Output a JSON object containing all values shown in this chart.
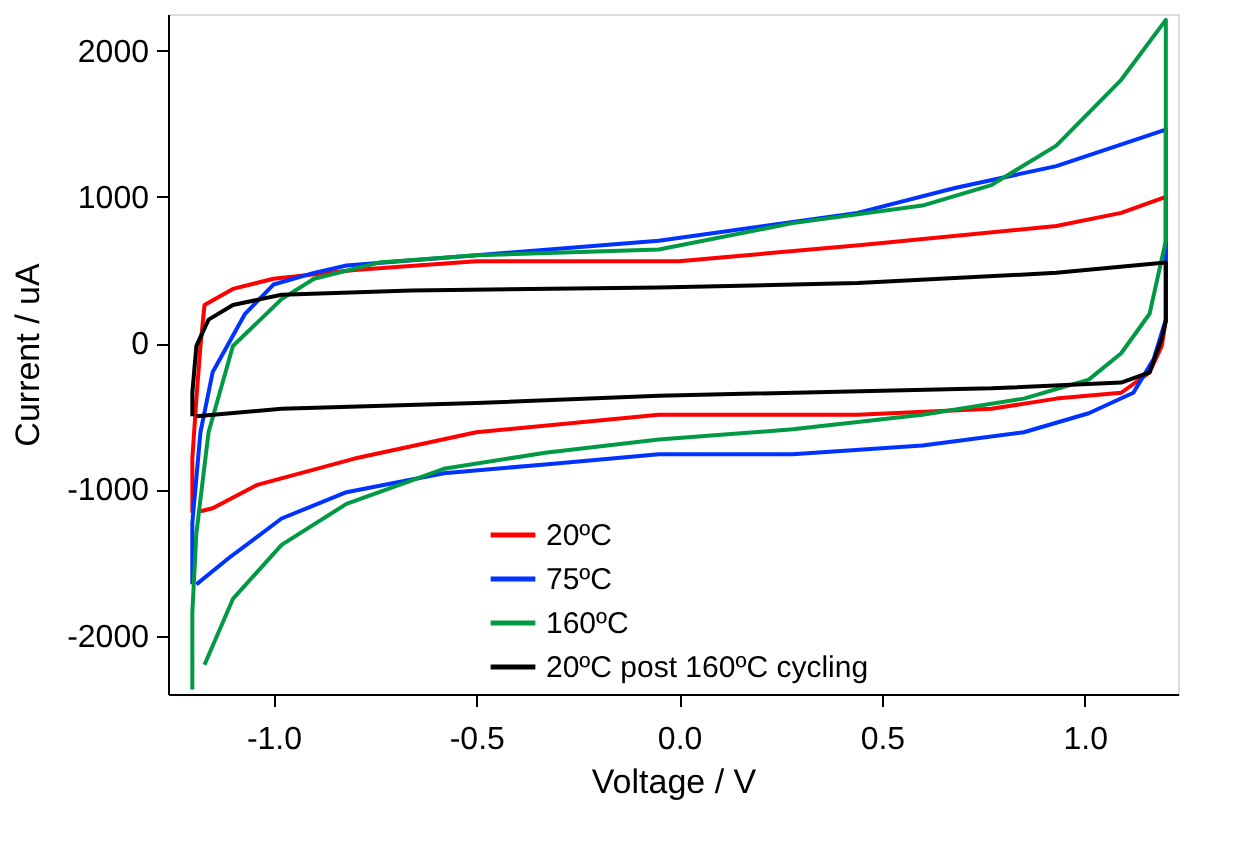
{
  "chart_data": {
    "type": "line",
    "xlabel": "Voltage / V",
    "ylabel": "Current / uA",
    "xlim": [
      -1.26,
      1.23
    ],
    "xticks": [
      {
        "value": -1.0,
        "label": "-1.0"
      },
      {
        "value": -0.5,
        "label": "-0.5"
      },
      {
        "value": 0.0,
        "label": "0.0"
      },
      {
        "value": 0.5,
        "label": "0.5"
      },
      {
        "value": 1.0,
        "label": "1.0"
      }
    ],
    "ylim": [
      -2400,
      2250
    ],
    "yticks": [
      -2000,
      -1000,
      0,
      1000,
      2000
    ],
    "grid": false,
    "legend": "bottom",
    "marker": "none",
    "line_style": "solid",
    "series": [
      {
        "name": "20ºC",
        "color": "#ff0000",
        "x": [
          -1.2,
          -1.2,
          -1.19,
          -1.18,
          -1.17,
          -1.1,
          -1.0,
          -0.8,
          -0.5,
          -0.05,
          0.0,
          0.45,
          0.93,
          1.09,
          1.2,
          1.2,
          1.19,
          1.16,
          1.09,
          0.93,
          0.77,
          0.44,
          -0.05,
          -0.5,
          -0.8,
          -1.04,
          -1.15,
          -1.18
        ],
        "values": [
          -1160,
          -790,
          -380,
          -20,
          260,
          370,
          440,
          500,
          560,
          560,
          560,
          670,
          800,
          890,
          1000,
          160,
          -20,
          -200,
          -340,
          -380,
          -450,
          -490,
          -490,
          -610,
          -790,
          -970,
          -1130,
          -1150
        ]
      },
      {
        "name": "75ºC",
        "color": "#0033ff",
        "x": [
          -1.2,
          -1.2,
          -1.18,
          -1.15,
          -1.07,
          -1.0,
          -0.9,
          -0.82,
          -0.5,
          -0.05,
          0.44,
          0.68,
          0.93,
          1.2,
          1.2,
          1.17,
          1.12,
          1.01,
          0.85,
          0.6,
          0.28,
          -0.05,
          -0.33,
          -0.58,
          -0.82,
          -0.98,
          -1.11,
          -1.19
        ],
        "values": [
          -1650,
          -1230,
          -610,
          -200,
          200,
          400,
          480,
          530,
          600,
          700,
          890,
          1060,
          1210,
          1460,
          160,
          -110,
          -340,
          -480,
          -610,
          -700,
          -760,
          -760,
          -830,
          -890,
          -1020,
          -1200,
          -1470,
          -1650
        ]
      },
      {
        "name": "160ºC",
        "color": "#009944",
        "x": [
          -1.2,
          -1.2,
          -1.19,
          -1.16,
          -1.1,
          -0.98,
          -0.9,
          -0.74,
          -0.5,
          -0.05,
          0.28,
          0.6,
          0.77,
          0.93,
          1.09,
          1.2,
          1.2,
          1.16,
          1.09,
          1.01,
          0.85,
          0.6,
          0.28,
          -0.05,
          -0.33,
          -0.58,
          -0.82,
          -0.98,
          -1.1,
          -1.17
        ],
        "values": [
          -2370,
          -1840,
          -1300,
          -610,
          -20,
          300,
          440,
          550,
          600,
          640,
          820,
          940,
          1080,
          1350,
          1800,
          2210,
          700,
          200,
          -70,
          -250,
          -380,
          -490,
          -590,
          -660,
          -750,
          -860,
          -1100,
          -1380,
          -1750,
          -2200
        ]
      },
      {
        "name": "20ºC post 160ºC cycling",
        "color": "#000000",
        "x": [
          -1.2,
          -1.2,
          -1.19,
          -1.16,
          -1.1,
          -0.98,
          -0.66,
          -0.05,
          0.44,
          0.93,
          1.2,
          1.2,
          1.19,
          1.16,
          1.09,
          0.77,
          -0.05,
          -0.5,
          -0.98,
          -1.19
        ],
        "values": [
          -500,
          -340,
          -20,
          160,
          260,
          330,
          360,
          380,
          410,
          480,
          550,
          150,
          30,
          -200,
          -270,
          -310,
          -360,
          -410,
          -450,
          -500
        ]
      }
    ]
  }
}
